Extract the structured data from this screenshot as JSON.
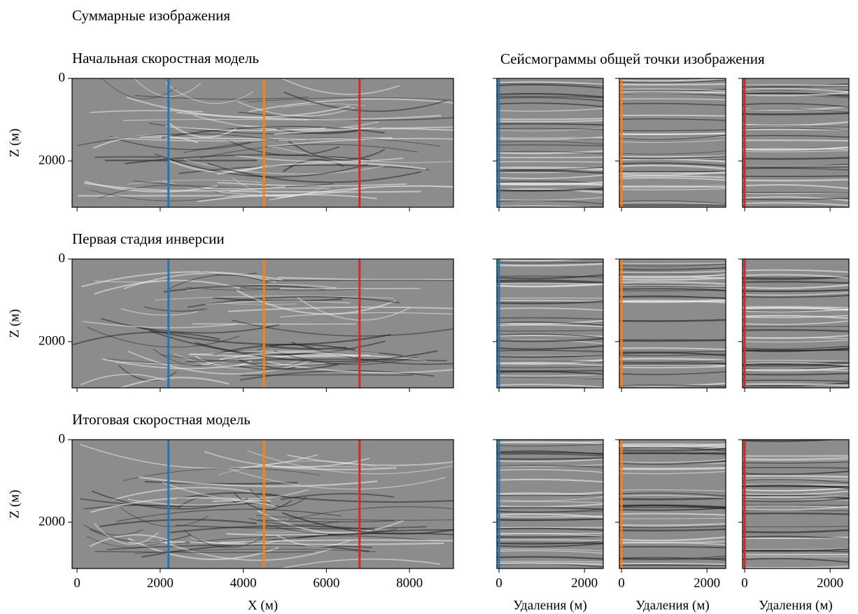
{
  "title": "Суммарные изображения",
  "gathers_title": "Сейсмограммы общей точки изображения",
  "chart_data": [
    {
      "type": "image",
      "title": "Начальная скоростная модель",
      "ylabel": "Z (м)",
      "xlim": [
        -120,
        9060
      ],
      "ylim": [
        3120,
        0
      ],
      "xticks": [
        0,
        2000,
        4000,
        6000,
        8000
      ],
      "yticks": [
        0,
        2000
      ],
      "show_xtick_labels": false,
      "show_ytick_labels": true,
      "lines": [
        {
          "x": 2200,
          "color": "#1f77b4"
        },
        {
          "x": 4500,
          "color": "#ff7f0e"
        },
        {
          "x": 6800,
          "color": "#d62728"
        }
      ]
    },
    {
      "type": "gather",
      "xlim": [
        -50,
        2440
      ],
      "ylim": [
        3120,
        0
      ],
      "xticks": [
        0,
        2000
      ],
      "yticks": [
        0,
        2000
      ],
      "show_xtick_labels": false,
      "show_ytick_labels": false,
      "lines": [
        {
          "x": 0,
          "color": "#1f77b4"
        }
      ]
    },
    {
      "type": "gather",
      "xlim": [
        -50,
        2440
      ],
      "ylim": [
        3120,
        0
      ],
      "xticks": [
        0,
        2000
      ],
      "yticks": [
        0,
        2000
      ],
      "show_xtick_labels": false,
      "show_ytick_labels": false,
      "lines": [
        {
          "x": 0,
          "color": "#ff7f0e"
        }
      ]
    },
    {
      "type": "gather",
      "xlim": [
        -50,
        2440
      ],
      "ylim": [
        3120,
        0
      ],
      "xticks": [
        0,
        2000
      ],
      "yticks": [
        0,
        2000
      ],
      "show_xtick_labels": false,
      "show_ytick_labels": false,
      "lines": [
        {
          "x": 0,
          "color": "#d62728"
        }
      ]
    },
    {
      "type": "image",
      "title": "Первая стадия инверсии",
      "ylabel": "Z (м)",
      "xlim": [
        -120,
        9060
      ],
      "ylim": [
        3120,
        0
      ],
      "xticks": [
        0,
        2000,
        4000,
        6000,
        8000
      ],
      "yticks": [
        0,
        2000
      ],
      "show_xtick_labels": false,
      "show_ytick_labels": true,
      "lines": [
        {
          "x": 2200,
          "color": "#1f77b4"
        },
        {
          "x": 4500,
          "color": "#ff7f0e"
        },
        {
          "x": 6800,
          "color": "#d62728"
        }
      ]
    },
    {
      "type": "gather",
      "xlim": [
        -50,
        2440
      ],
      "ylim": [
        3120,
        0
      ],
      "xticks": [
        0,
        2000
      ],
      "yticks": [
        0,
        2000
      ],
      "show_xtick_labels": false,
      "show_ytick_labels": false,
      "lines": [
        {
          "x": 0,
          "color": "#1f77b4"
        }
      ]
    },
    {
      "type": "gather",
      "xlim": [
        -50,
        2440
      ],
      "ylim": [
        3120,
        0
      ],
      "xticks": [
        0,
        2000
      ],
      "yticks": [
        0,
        2000
      ],
      "show_xtick_labels": false,
      "show_ytick_labels": false,
      "lines": [
        {
          "x": 0,
          "color": "#ff7f0e"
        }
      ]
    },
    {
      "type": "gather",
      "xlim": [
        -50,
        2440
      ],
      "ylim": [
        3120,
        0
      ],
      "xticks": [
        0,
        2000
      ],
      "yticks": [
        0,
        2000
      ],
      "show_xtick_labels": false,
      "show_ytick_labels": false,
      "lines": [
        {
          "x": 0,
          "color": "#d62728"
        }
      ]
    },
    {
      "type": "image",
      "title": "Итоговая скоростная модель",
      "ylabel": "Z (м)",
      "xlabel": "X (м)",
      "xlim": [
        -120,
        9060
      ],
      "ylim": [
        3120,
        0
      ],
      "xticks": [
        0,
        2000,
        4000,
        6000,
        8000
      ],
      "yticks": [
        0,
        2000
      ],
      "show_xtick_labels": true,
      "show_ytick_labels": true,
      "lines": [
        {
          "x": 2200,
          "color": "#1f77b4"
        },
        {
          "x": 4500,
          "color": "#ff7f0e"
        },
        {
          "x": 6800,
          "color": "#d62728"
        }
      ]
    },
    {
      "type": "gather",
      "xlabel": "Удаления (м)",
      "xlim": [
        -50,
        2440
      ],
      "ylim": [
        3120,
        0
      ],
      "xticks": [
        0,
        2000
      ],
      "yticks": [
        0,
        2000
      ],
      "show_xtick_labels": true,
      "show_ytick_labels": false,
      "lines": [
        {
          "x": 0,
          "color": "#1f77b4"
        }
      ]
    },
    {
      "type": "gather",
      "xlabel": "Удаления (м)",
      "xlim": [
        -50,
        2440
      ],
      "ylim": [
        3120,
        0
      ],
      "xticks": [
        0,
        2000
      ],
      "yticks": [
        0,
        2000
      ],
      "show_xtick_labels": true,
      "show_ytick_labels": false,
      "lines": [
        {
          "x": 0,
          "color": "#ff7f0e"
        }
      ]
    },
    {
      "type": "gather",
      "xlabel": "Удаления (м)",
      "xlim": [
        -50,
        2440
      ],
      "ylim": [
        3120,
        0
      ],
      "xticks": [
        0,
        2000
      ],
      "yticks": [
        0,
        2000
      ],
      "show_xtick_labels": true,
      "show_ytick_labels": false,
      "lines": [
        {
          "x": 0,
          "color": "#d62728"
        }
      ]
    }
  ]
}
